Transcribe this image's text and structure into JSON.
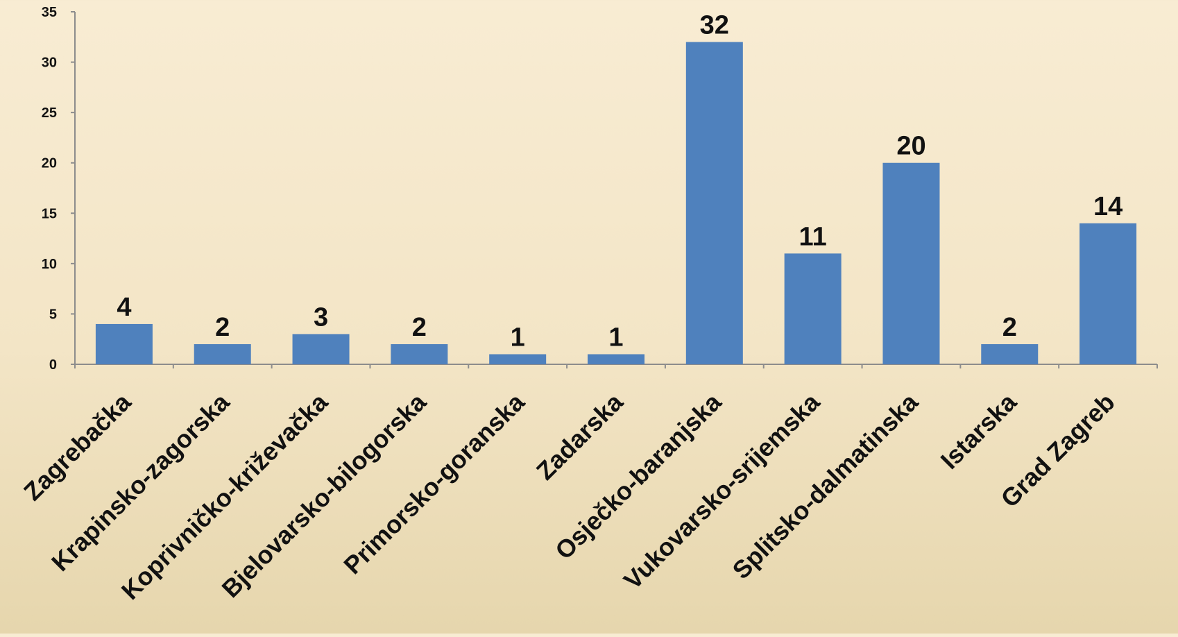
{
  "chart_data": {
    "type": "bar",
    "title": "",
    "xlabel": "",
    "ylabel": "",
    "categories": [
      "Zagrebačka",
      "Krapinsko-zagorska",
      "Koprivničko-križevačka",
      "Bjelovarsko-bilogorska",
      "Primorsko-goranska",
      "Zadarska",
      "Osječko-baranjska",
      "Vukovarsko-srijemska",
      "Splitsko-dalmatinska",
      "Istarska",
      "Grad Zagreb"
    ],
    "values": [
      4,
      2,
      3,
      2,
      1,
      1,
      32,
      11,
      20,
      2,
      14
    ],
    "ylim": [
      0,
      35
    ],
    "yticks": [
      0,
      5,
      10,
      15,
      20,
      25,
      30,
      35
    ],
    "grid": false,
    "legend": "none",
    "data_labels": true,
    "colors": {
      "bar": "#4f81bd",
      "axis": "#8c8c8c",
      "text": "#111111"
    }
  }
}
